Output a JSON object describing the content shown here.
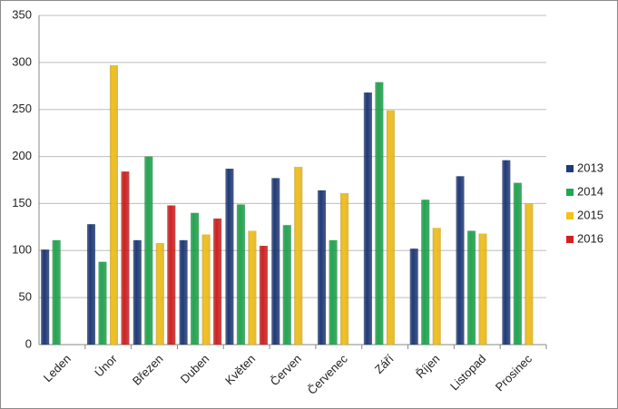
{
  "chart_data": {
    "type": "bar",
    "categories": [
      "Leden",
      "Únor",
      "Březen",
      "Duben",
      "Květen",
      "Červen",
      "Červenec",
      "Září",
      "Říjen",
      "Listopad",
      "Prosinec"
    ],
    "series": [
      {
        "name": "2013",
        "color": "#1f3a7a",
        "values": [
          101,
          128,
          111,
          111,
          187,
          177,
          164,
          268,
          102,
          179,
          196
        ]
      },
      {
        "name": "2014",
        "color": "#1fa84f",
        "values": [
          111,
          88,
          200,
          140,
          149,
          127,
          111,
          279,
          154,
          121,
          172
        ]
      },
      {
        "name": "2015",
        "color": "#f5c21a",
        "values": [
          null,
          297,
          108,
          117,
          121,
          189,
          161,
          249,
          124,
          118,
          150
        ]
      },
      {
        "name": "2016",
        "color": "#d42020",
        "values": [
          null,
          184,
          148,
          134,
          105,
          null,
          null,
          null,
          null,
          null,
          null
        ]
      }
    ],
    "ylim": [
      0,
      350
    ],
    "yticks": [
      0,
      50,
      100,
      150,
      200,
      250,
      300,
      350
    ],
    "grid": true,
    "legend": "right"
  }
}
